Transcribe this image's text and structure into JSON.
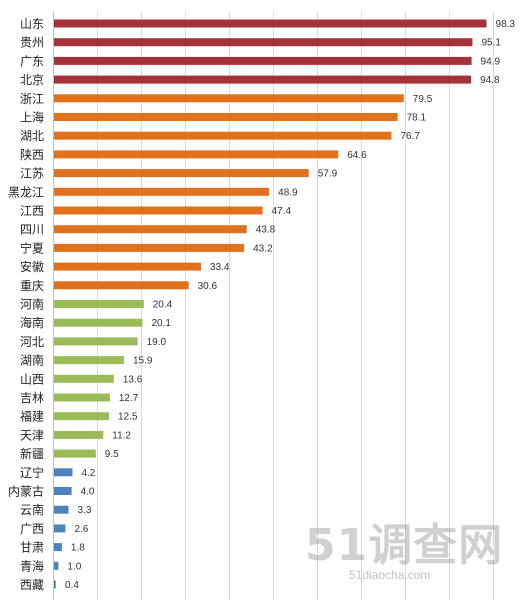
{
  "chart_data": {
    "type": "bar",
    "orientation": "horizontal",
    "categories": [
      "山东",
      "贵州",
      "广东",
      "北京",
      "浙江",
      "上海",
      "湖北",
      "陕西",
      "江苏",
      "黑龙江",
      "江西",
      "四川",
      "宁夏",
      "安徽",
      "重庆",
      "河南",
      "海南",
      "河北",
      "湖南",
      "山西",
      "吉林",
      "福建",
      "天津",
      "新疆",
      "辽宁",
      "内蒙古",
      "云南",
      "广西",
      "甘肃",
      "青海",
      "西藏"
    ],
    "values": [
      98.3,
      95.1,
      94.9,
      94.8,
      79.5,
      78.1,
      76.7,
      64.6,
      57.9,
      48.9,
      47.4,
      43.8,
      43.2,
      33.4,
      30.6,
      20.4,
      20.1,
      19.0,
      15.9,
      13.6,
      12.7,
      12.5,
      11.2,
      9.5,
      4.2,
      4.0,
      3.3,
      2.6,
      1.8,
      1.0,
      0.4
    ],
    "value_labels": [
      "98.3",
      "95.1",
      "94.9",
      "94.8",
      "79.5",
      "78.1",
      "76.7",
      "64.6",
      "57.9",
      "48.9",
      "47.4",
      "43.8",
      "43.2",
      "33.4",
      "30.6",
      "20.4",
      "20.1",
      "19.0",
      "15.9",
      "13.6",
      "12.7",
      "12.5",
      "11.2",
      "9.5",
      "4.2",
      "4.0",
      "3.3",
      "2.6",
      "1.8",
      "1.0",
      "0.4"
    ],
    "groups": [
      "tier1",
      "tier1",
      "tier1",
      "tier1",
      "tier2",
      "tier2",
      "tier2",
      "tier2",
      "tier2",
      "tier2",
      "tier2",
      "tier2",
      "tier2",
      "tier2",
      "tier2",
      "tier3",
      "tier3",
      "tier3",
      "tier3",
      "tier3",
      "tier3",
      "tier3",
      "tier3",
      "tier3",
      "tier4",
      "tier4",
      "tier4",
      "tier4",
      "tier4",
      "tier4",
      "tier4"
    ],
    "colors": {
      "tier1": "#a5313b",
      "tier2": "#e2711d",
      "tier3": "#9bbb59",
      "tier4": "#4f81bd"
    },
    "xlim": [
      0,
      100
    ],
    "grid": true,
    "title": "",
    "xlabel": "",
    "ylabel": ""
  },
  "watermark": {
    "logo_text": "51调查网",
    "url_text": "51diaocha.com"
  }
}
